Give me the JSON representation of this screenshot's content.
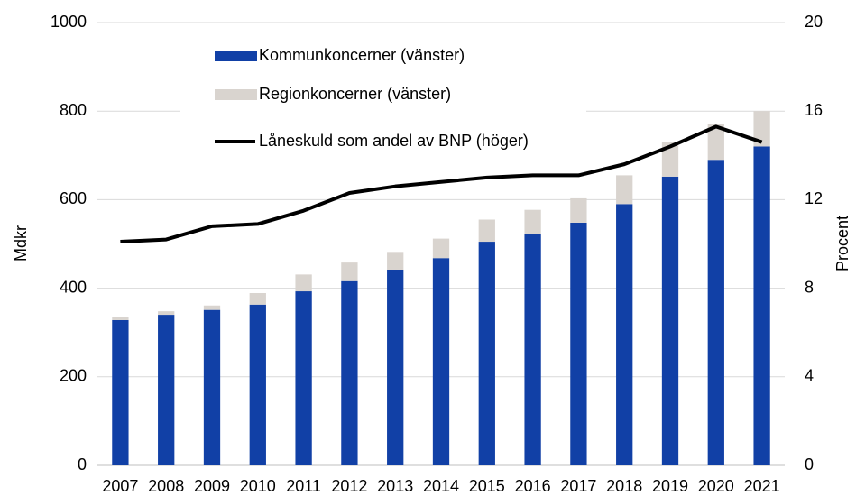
{
  "chart_data": {
    "type": "bar",
    "stacked": true,
    "categories": [
      "2007",
      "2008",
      "2009",
      "2010",
      "2011",
      "2012",
      "2013",
      "2014",
      "2015",
      "2016",
      "2017",
      "2018",
      "2019",
      "2020",
      "2021"
    ],
    "series": [
      {
        "name": "Kommunkoncerner (vänster)",
        "color": "#1140a6",
        "values": [
          328,
          340,
          351,
          363,
          393,
          416,
          442,
          468,
          505,
          522,
          548,
          590,
          652,
          690,
          720
        ]
      },
      {
        "name": "Regionkoncerner (vänster)",
        "color": "#d9d4cf",
        "values": [
          8,
          8,
          10,
          26,
          38,
          42,
          40,
          44,
          50,
          55,
          55,
          65,
          78,
          80,
          80
        ]
      },
      {
        "name": "Låneskuld som andel av BNP (höger)",
        "color": "#000000",
        "type": "line",
        "axis": "y2",
        "values": [
          10.1,
          10.2,
          10.8,
          10.9,
          11.5,
          12.3,
          12.6,
          12.8,
          13.0,
          13.1,
          13.1,
          13.6,
          14.4,
          15.3,
          14.6
        ]
      }
    ],
    "ylabel": "Mdkr",
    "y2label": "Procent",
    "ylim": [
      0,
      1000
    ],
    "yticks": [
      0,
      200,
      400,
      600,
      800,
      1000
    ],
    "y2lim": [
      0,
      20
    ],
    "y2ticks": [
      0,
      4,
      8,
      12,
      16,
      20
    ],
    "grid": true
  }
}
